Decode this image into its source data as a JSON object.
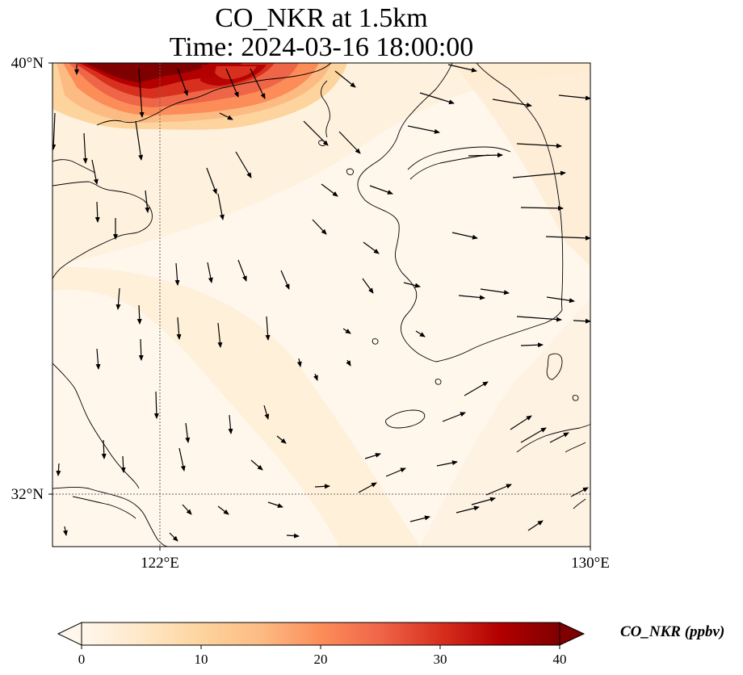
{
  "title": {
    "line1": "CO_NKR at 1.5km",
    "line2": "Time: 2024-03-16 18:00:00"
  },
  "map": {
    "lat_labels": [
      "40°N",
      "32°N"
    ],
    "lon_labels": [
      "122°E",
      "130°E"
    ],
    "extent": {
      "lon": [
        120,
        130
      ],
      "lat": [
        31,
        40
      ]
    },
    "gridlines": {
      "lon": [
        122
      ],
      "lat": [
        32
      ]
    },
    "field_colors": {
      "plume_dark": "#7f0000",
      "plume_red": "#b30000",
      "plume_orange": "#ef6548",
      "plume_light": "#fdbb84",
      "background": "#fff7ec",
      "band": "#fee8c8"
    },
    "plume_location": "top-left",
    "vector_field": "wind-arrows",
    "coastline_color": "#000000"
  },
  "colorbar": {
    "label": "CO_NKR (ppbv)",
    "ticks": [
      "0",
      "10",
      "20",
      "30",
      "40"
    ],
    "range": [
      0,
      40
    ],
    "colormap": "OrRd",
    "extend": "both",
    "colors": [
      "#fff7ec",
      "#fee8c8",
      "#fdd49e",
      "#fdbb84",
      "#fc8d59",
      "#ef6548",
      "#d7301f",
      "#b30000",
      "#7f0000"
    ]
  }
}
